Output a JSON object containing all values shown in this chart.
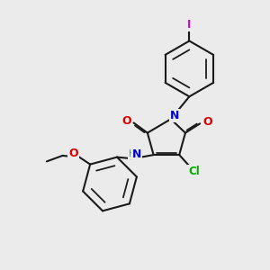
{
  "bg_color": "#ebebeb",
  "bond_color": "#1a1a1a",
  "bond_width": 1.5,
  "dbo": 0.055,
  "atom_colors": {
    "O": "#dd0000",
    "N_blue": "#0000cc",
    "N_gray": "#5a9090",
    "Cl": "#00aa00",
    "I": "#cc00cc",
    "C": "#1a1a1a"
  },
  "xlim": [
    0,
    10
  ],
  "ylim": [
    0,
    10
  ]
}
